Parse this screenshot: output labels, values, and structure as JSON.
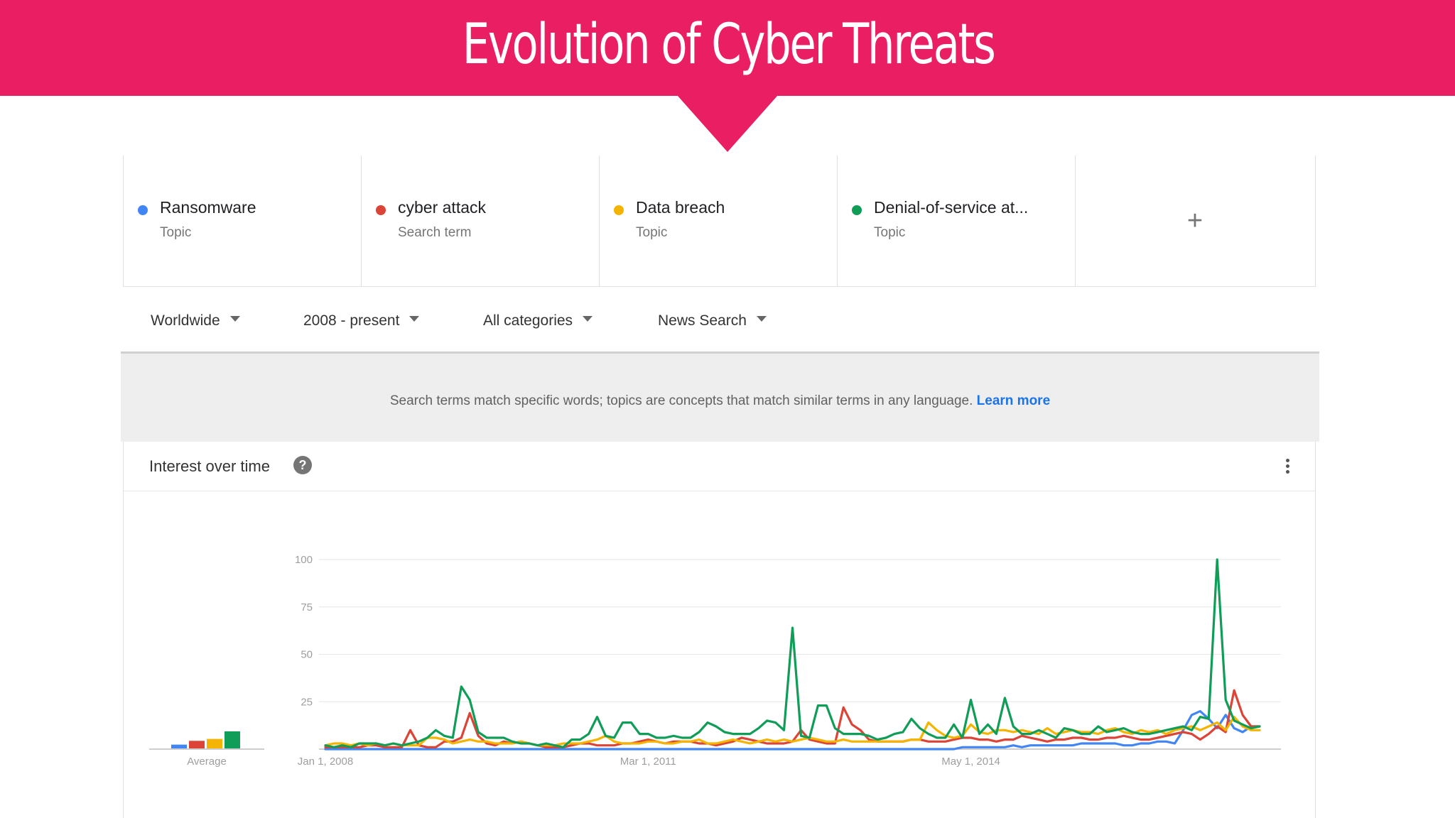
{
  "slide": {
    "title": "Evolution of Cyber Threats"
  },
  "terms": [
    {
      "name": "Ransomware",
      "type": "Topic",
      "color": "#4285f4"
    },
    {
      "name": "cyber attack",
      "type": "Search term",
      "color": "#db4437"
    },
    {
      "name": "Data breach",
      "type": "Topic",
      "color": "#f4b400"
    },
    {
      "name": "Denial-of-service at...",
      "type": "Topic",
      "color": "#0f9d58"
    }
  ],
  "add_term": {
    "icon": "plus-icon",
    "glyph": "+"
  },
  "filters": {
    "region": "Worldwide",
    "period": "2008 - present",
    "category": "All categories",
    "search_type": "News Search"
  },
  "info": {
    "text": "Search terms match specific words; topics are concepts that match similar terms in any language.",
    "link": "Learn more"
  },
  "card": {
    "title": "Interest over time",
    "help_glyph": "?"
  },
  "chart_data": {
    "type": "line",
    "title": "Interest over time",
    "ylim": [
      0,
      100
    ],
    "yticks": [
      25,
      50,
      75,
      100
    ],
    "grid": true,
    "xtick_labels": [
      "Jan 1, 2008",
      "Mar 1, 2011",
      "May 1, 2014"
    ],
    "xtick_positions": [
      0,
      38,
      76
    ],
    "x_count": 111,
    "average_label": "Average",
    "averages": [
      {
        "name": "Ransomware",
        "value": 2
      },
      {
        "name": "cyber attack",
        "value": 4
      },
      {
        "name": "Data breach",
        "value": 5
      },
      {
        "name": "Denial-of-service at...",
        "value": 9
      }
    ],
    "series": [
      {
        "name": "Ransomware",
        "color": "#4285f4",
        "values": [
          0,
          0,
          0,
          0,
          0,
          0,
          0,
          0,
          0,
          0,
          0,
          0,
          0,
          0,
          0,
          0,
          0,
          0,
          0,
          0,
          0,
          0,
          0,
          0,
          0,
          0,
          0,
          0,
          0,
          0,
          0,
          0,
          0,
          0,
          0,
          0,
          0,
          0,
          0,
          0,
          0,
          0,
          0,
          0,
          0,
          0,
          0,
          0,
          0,
          0,
          0,
          0,
          0,
          0,
          0,
          0,
          0,
          0,
          0,
          0,
          0,
          0,
          0,
          0,
          0,
          0,
          0,
          0,
          0,
          0,
          0,
          0,
          0,
          0,
          0,
          1,
          1,
          1,
          1,
          1,
          1,
          2,
          1,
          2,
          2,
          2,
          2,
          2,
          2,
          3,
          3,
          3,
          3,
          3,
          2,
          2,
          3,
          3,
          4,
          4,
          3,
          10,
          18,
          20,
          16,
          11,
          18,
          11,
          9,
          12,
          12
        ]
      },
      {
        "name": "cyber attack",
        "color": "#db4437",
        "values": [
          1,
          1,
          1,
          1,
          1,
          2,
          2,
          1,
          1,
          1,
          10,
          2,
          1,
          1,
          4,
          4,
          6,
          19,
          7,
          3,
          2,
          4,
          3,
          4,
          3,
          2,
          1,
          1,
          1,
          2,
          3,
          3,
          2,
          2,
          2,
          3,
          3,
          4,
          5,
          4,
          3,
          4,
          4,
          4,
          3,
          3,
          2,
          3,
          4,
          6,
          5,
          4,
          3,
          3,
          3,
          4,
          10,
          5,
          4,
          3,
          3,
          22,
          13,
          10,
          5,
          4,
          4,
          4,
          4,
          5,
          5,
          4,
          4,
          4,
          5,
          6,
          6,
          5,
          5,
          4,
          5,
          5,
          7,
          6,
          5,
          4,
          5,
          5,
          6,
          6,
          5,
          5,
          6,
          6,
          7,
          6,
          5,
          5,
          6,
          7,
          8,
          9,
          8,
          5,
          8,
          12,
          9,
          31,
          18,
          12,
          12
        ]
      },
      {
        "name": "Data breach",
        "color": "#f4b400",
        "values": [
          2,
          3,
          3,
          2,
          3,
          2,
          3,
          2,
          3,
          2,
          2,
          2,
          6,
          6,
          5,
          3,
          4,
          5,
          4,
          4,
          3,
          3,
          3,
          4,
          3,
          2,
          2,
          2,
          3,
          3,
          3,
          4,
          5,
          7,
          4,
          3,
          3,
          3,
          4,
          4,
          3,
          3,
          4,
          4,
          5,
          3,
          3,
          4,
          5,
          4,
          3,
          4,
          5,
          4,
          5,
          4,
          5,
          6,
          5,
          4,
          4,
          5,
          4,
          4,
          4,
          4,
          4,
          4,
          4,
          5,
          5,
          14,
          10,
          7,
          6,
          7,
          13,
          9,
          8,
          10,
          10,
          9,
          10,
          9,
          8,
          11,
          8,
          9,
          10,
          9,
          9,
          8,
          10,
          11,
          9,
          8,
          10,
          9,
          10,
          8,
          10,
          11,
          12,
          10,
          12,
          14,
          10,
          17,
          12,
          10,
          10
        ]
      },
      {
        "name": "Denial-of-service at...",
        "color": "#0f9d58",
        "values": [
          2,
          1,
          2,
          1,
          3,
          3,
          3,
          2,
          3,
          2,
          3,
          4,
          6,
          10,
          7,
          6,
          33,
          26,
          9,
          6,
          6,
          6,
          4,
          3,
          3,
          2,
          3,
          2,
          1,
          5,
          5,
          8,
          17,
          7,
          6,
          14,
          14,
          8,
          8,
          6,
          6,
          7,
          6,
          6,
          9,
          14,
          12,
          9,
          8,
          8,
          8,
          11,
          15,
          14,
          10,
          64,
          7,
          6,
          23,
          23,
          11,
          8,
          8,
          8,
          7,
          5,
          6,
          8,
          9,
          16,
          11,
          8,
          6,
          6,
          13,
          6,
          26,
          8,
          13,
          8,
          27,
          12,
          8,
          8,
          10,
          8,
          6,
          11,
          10,
          8,
          8,
          12,
          9,
          10,
          11,
          9,
          8,
          8,
          9,
          10,
          11,
          12,
          10,
          17,
          16,
          100,
          26,
          15,
          13,
          11,
          12
        ]
      }
    ]
  }
}
